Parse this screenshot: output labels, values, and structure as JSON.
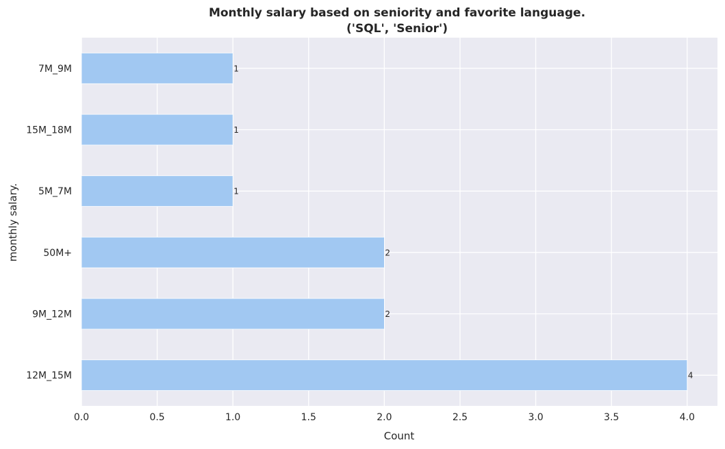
{
  "chart_data": {
    "type": "bar",
    "orientation": "horizontal",
    "title": "Monthly salary based on seniority and favorite language.",
    "subtitle": "('SQL', 'Senior')",
    "xlabel": "Count",
    "ylabel": "monthly salary.",
    "categories": [
      "7M_9M",
      "15M_18M",
      "5M_7M",
      "50M+",
      "9M_12M",
      "12M_15M"
    ],
    "values": [
      1,
      1,
      1,
      2,
      2,
      4
    ],
    "xlim": [
      0,
      4.2
    ],
    "xticks": [
      "0.0",
      "0.5",
      "1.0",
      "1.5",
      "2.0",
      "2.5",
      "3.0",
      "3.5",
      "4.0"
    ],
    "grid": true,
    "colors": {
      "bar": "#a1c8f2",
      "background": "#eaeaf2",
      "grid": "#ffffff"
    }
  }
}
